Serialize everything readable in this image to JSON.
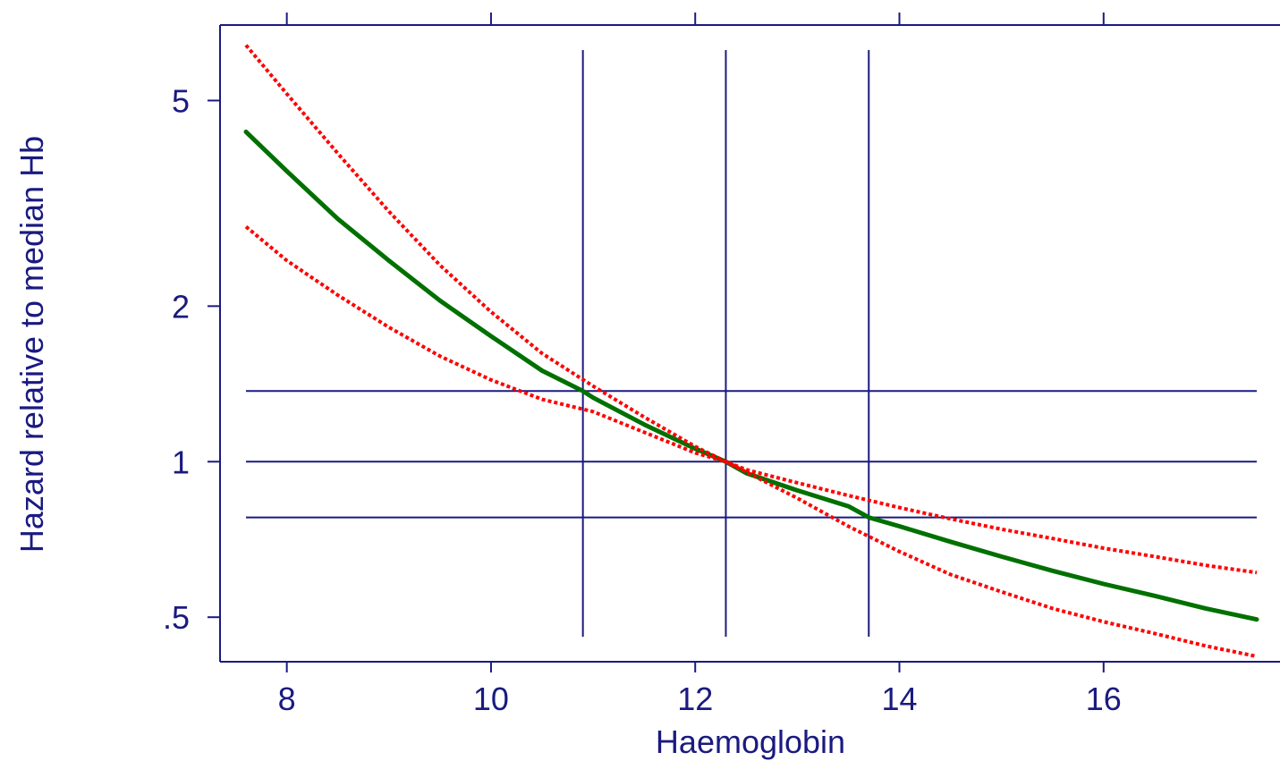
{
  "chart_data": {
    "type": "line",
    "title": "",
    "xlabel": "Haemoglobin",
    "ylabel": "Hazard relative to median Hb",
    "xlim": [
      7.6,
      17.5
    ],
    "ylim": [
      0.41,
      7.0
    ],
    "y_scale": "log",
    "grid": false,
    "x_ticks": [
      8,
      10,
      12,
      14,
      16
    ],
    "x_tick_labels": [
      "8",
      "10",
      "12",
      "14",
      "16"
    ],
    "y_ticks": [
      0.5,
      1,
      2,
      5
    ],
    "y_tick_labels": [
      ".5",
      "1",
      "2",
      "5"
    ],
    "reference_lines": {
      "vertical_x": [
        10.9,
        12.3,
        13.7
      ],
      "horizontal_y": [
        0.78,
        1.0,
        1.37
      ]
    },
    "series": [
      {
        "role": "estimate",
        "style": "solid",
        "color": "#007000",
        "x": [
          7.6,
          8.0,
          8.5,
          9.0,
          9.5,
          10.0,
          10.5,
          10.9,
          11.0,
          11.5,
          12.0,
          12.3,
          12.5,
          13.0,
          13.5,
          13.7,
          14.0,
          14.5,
          15.0,
          15.5,
          16.0,
          16.5,
          17.0,
          17.5
        ],
        "y": [
          4.35,
          3.65,
          2.95,
          2.45,
          2.05,
          1.75,
          1.5,
          1.37,
          1.33,
          1.18,
          1.06,
          1.0,
          0.95,
          0.88,
          0.82,
          0.78,
          0.75,
          0.7,
          0.655,
          0.615,
          0.58,
          0.55,
          0.52,
          0.495
        ]
      },
      {
        "role": "upper-ci",
        "style": "dotted",
        "color": "#ff0000",
        "x": [
          7.6,
          8.0,
          8.5,
          9.0,
          9.5,
          10.0,
          10.5,
          11.0,
          11.5,
          12.0,
          12.3,
          12.5,
          13.0,
          13.5,
          14.0,
          14.5,
          15.0,
          15.5,
          16.0,
          16.5,
          17.0,
          17.5
        ],
        "y": [
          6.4,
          5.15,
          3.95,
          3.05,
          2.4,
          1.95,
          1.62,
          1.4,
          1.22,
          1.07,
          1.0,
          0.965,
          0.91,
          0.86,
          0.815,
          0.775,
          0.74,
          0.71,
          0.68,
          0.655,
          0.63,
          0.61
        ]
      },
      {
        "role": "lower-ci",
        "style": "dotted",
        "color": "#ff0000",
        "x": [
          7.6,
          8.0,
          8.5,
          9.0,
          9.5,
          10.0,
          10.5,
          11.0,
          11.5,
          12.0,
          12.3,
          12.5,
          13.0,
          13.5,
          14.0,
          14.5,
          15.0,
          15.5,
          16.0,
          16.5,
          17.0,
          17.5
        ],
        "y": [
          2.85,
          2.45,
          2.1,
          1.82,
          1.6,
          1.44,
          1.32,
          1.25,
          1.14,
          1.04,
          1.0,
          0.955,
          0.85,
          0.75,
          0.67,
          0.605,
          0.56,
          0.52,
          0.49,
          0.465,
          0.44,
          0.42
        ]
      }
    ]
  },
  "colors": {
    "axis": "#1a1a80",
    "reference_line": "#1a1a80",
    "estimate": "#007000",
    "ci": "#ff0000",
    "background": "#ffffff"
  }
}
